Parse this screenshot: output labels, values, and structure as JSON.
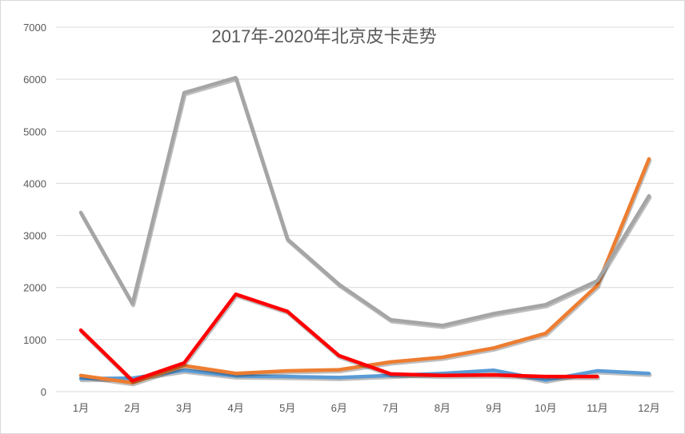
{
  "chart_data": {
    "type": "line",
    "title": "2017年-2020年北京皮卡走势",
    "xlabel": "",
    "ylabel": "",
    "categories": [
      "1月",
      "2月",
      "3月",
      "4月",
      "5月",
      "6月",
      "7月",
      "8月",
      "9月",
      "10月",
      "11月",
      "12月"
    ],
    "ylim": [
      0,
      7000
    ],
    "yticks": [
      "0",
      "1000",
      "2000",
      "3000",
      "4000",
      "5000",
      "6000",
      "7000"
    ],
    "grid": true,
    "legend": "none",
    "series": [
      {
        "color": "#5b9bd5",
        "values": [
          250,
          260,
          410,
          300,
          290,
          270,
          310,
          350,
          410,
          220,
          400,
          350
        ]
      },
      {
        "color": "#ed7d31",
        "values": [
          310,
          170,
          500,
          350,
          400,
          420,
          570,
          660,
          840,
          1120,
          2040,
          4470
        ]
      },
      {
        "color": "#a5a5a5",
        "values": [
          3440,
          1690,
          5740,
          6030,
          2930,
          2060,
          1380,
          1270,
          1500,
          1670,
          2130,
          3760
        ]
      },
      {
        "color": "#ff0000",
        "values": [
          1180,
          210,
          550,
          1870,
          1540,
          690,
          340,
          310,
          320,
          290,
          290,
          null
        ]
      }
    ]
  }
}
